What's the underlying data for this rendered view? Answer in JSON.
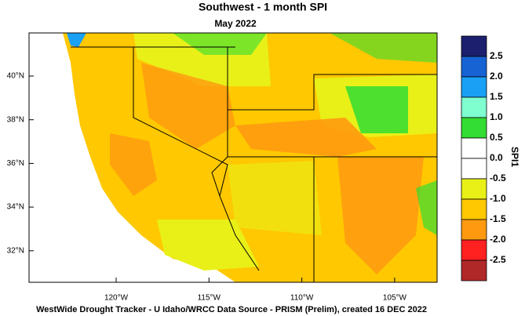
{
  "title": "Southwest - 1 month SPI",
  "subtitle": "May 2022",
  "map": {
    "lat_labels": [
      "40°N",
      "38°N",
      "36°N",
      "34°N",
      "32°N"
    ],
    "lon_labels": [
      "120°W",
      "115°W",
      "110°W",
      "105°W"
    ]
  },
  "colorbar": {
    "label": "SPI1",
    "colors": [
      "#1c1f6e",
      "#1763d4",
      "#1aa0f5",
      "#7fffd0",
      "#33dd33",
      "#ffffff",
      "#ffffff",
      "#e8f018",
      "#ffc800",
      "#ff9a10",
      "#ff2020",
      "#b02828"
    ],
    "tick_labels": [
      "2.5",
      "2.0",
      "1.5",
      "1.0",
      "0.5",
      "0.0",
      "-0.5",
      "-1.0",
      "-1.5",
      "-2.0",
      "-2.5"
    ]
  },
  "footer": "WestWide Drought Tracker - U Idaho/WRCC  Data Source - PRISM (Prelim), created 16 DEC 2022"
}
